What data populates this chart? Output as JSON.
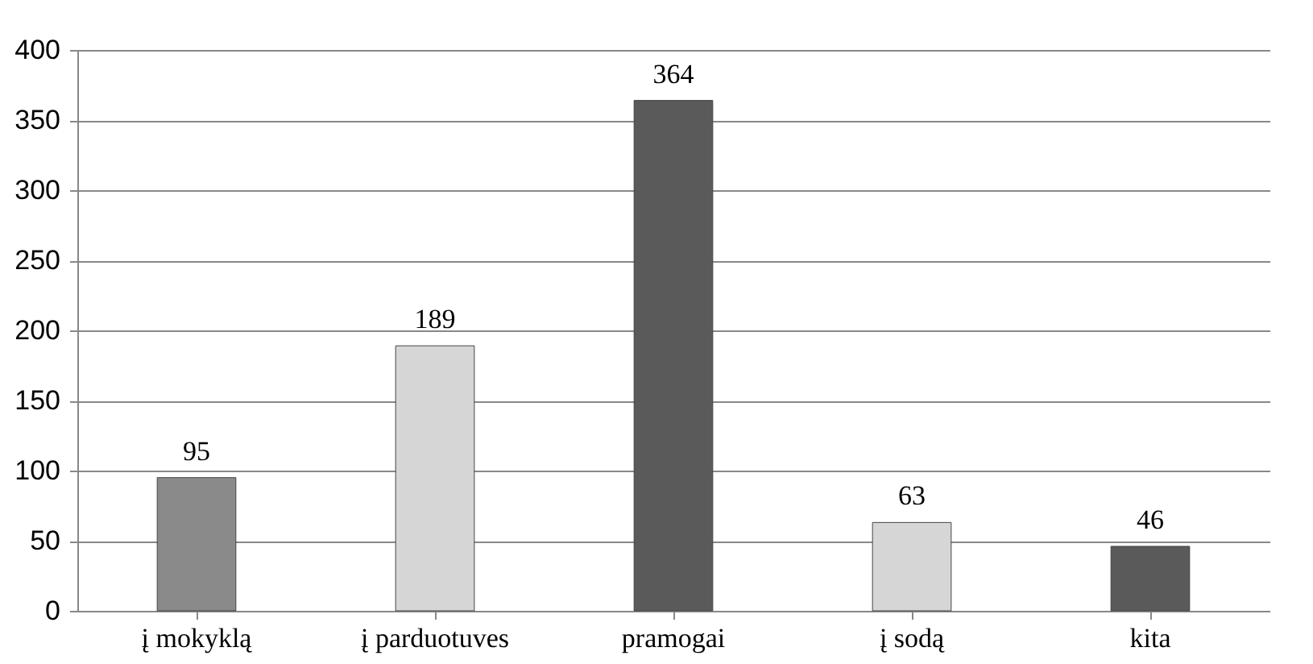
{
  "chart_data": {
    "type": "bar",
    "categories": [
      "į mokyklą",
      "į parduotuves",
      "pramogai",
      "į sodą",
      "kita"
    ],
    "values": [
      95,
      189,
      364,
      63,
      46
    ],
    "colors": [
      "#8a8a8a",
      "#d6d6d6",
      "#5a5a5a",
      "#d6d6d6",
      "#5a5a5a"
    ],
    "ylim": [
      0,
      400
    ],
    "yticks": [
      0,
      50,
      100,
      150,
      200,
      250,
      300,
      350,
      400
    ],
    "grid": "y",
    "data_labels": true
  }
}
